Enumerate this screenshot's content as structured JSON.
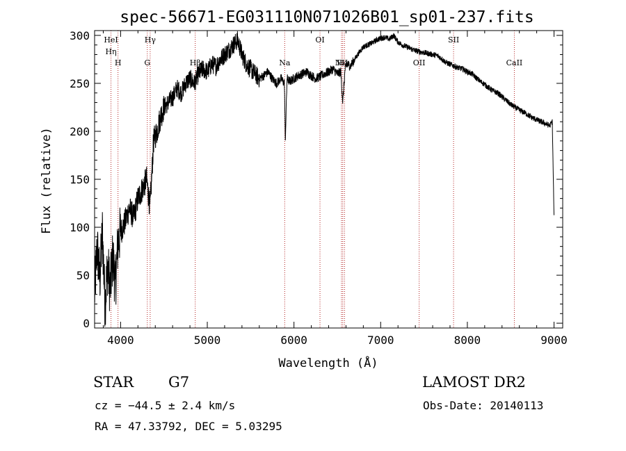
{
  "chart_data": {
    "type": "line",
    "title": "spec-56671-EG031110N071026B01_sp01-237.fits",
    "xlabel": "Wavelength (Å)",
    "ylabel": "Flux (relative)",
    "xlim": [
      3700,
      9100
    ],
    "ylim": [
      -5,
      305
    ],
    "xticks": [
      4000,
      5000,
      6000,
      7000,
      8000,
      9000
    ],
    "yticks": [
      0,
      50,
      100,
      150,
      200,
      250,
      300
    ],
    "grid": false,
    "series": [
      {
        "x": [
          3700,
          3730,
          3760,
          3790,
          3820,
          3850,
          3880,
          3910,
          3940,
          3970,
          4000,
          4050,
          4100,
          4150,
          4200,
          4250,
          4300,
          4340,
          4380,
          4420,
          4460,
          4500,
          4550,
          4600,
          4650,
          4700,
          4750,
          4800,
          4850,
          4900,
          4950,
          5000,
          5050,
          5100,
          5150,
          5200,
          5250,
          5300,
          5350,
          5400,
          5450,
          5500,
          5550,
          5600,
          5650,
          5700,
          5750,
          5800,
          5850,
          5890,
          5900,
          5920,
          5950,
          6000,
          6050,
          6100,
          6150,
          6200,
          6250,
          6300,
          6350,
          6400,
          6450,
          6500,
          6540,
          6563,
          6590,
          6620,
          6650,
          6700,
          6750,
          6800,
          6850,
          6900,
          6950,
          7000,
          7050,
          7100,
          7150,
          7200,
          7250,
          7300,
          7350,
          7400,
          7450,
          7500,
          7550,
          7600,
          7650,
          7700,
          7750,
          7800,
          7850,
          7900,
          7950,
          8000,
          8050,
          8100,
          8150,
          8200,
          8250,
          8300,
          8350,
          8400,
          8450,
          8500,
          8550,
          8600,
          8650,
          8700,
          8750,
          8800,
          8850,
          8900,
          8950,
          8980,
          9000
        ],
        "y": [
          30,
          80,
          45,
          95,
          20,
          60,
          35,
          70,
          40,
          85,
          95,
          105,
          120,
          110,
          130,
          140,
          150,
          120,
          190,
          200,
          215,
          225,
          230,
          235,
          245,
          240,
          250,
          255,
          250,
          260,
          265,
          262,
          270,
          268,
          275,
          280,
          285,
          290,
          295,
          280,
          270,
          265,
          260,
          255,
          258,
          262,
          255,
          250,
          255,
          250,
          190,
          255,
          252,
          255,
          258,
          260,
          262,
          258,
          255,
          257,
          260,
          262,
          265,
          260,
          262,
          230,
          265,
          270,
          268,
          275,
          282,
          288,
          290,
          292,
          295,
          297,
          298,
          296,
          300,
          293,
          290,
          288,
          286,
          284,
          283,
          282,
          281,
          280,
          279,
          276,
          272,
          270,
          268,
          266,
          265,
          262,
          260,
          256,
          252,
          249,
          245,
          242,
          240,
          236,
          232,
          228,
          225,
          222,
          220,
          217,
          214,
          212,
          210,
          208,
          206,
          210,
          110
        ]
      }
    ],
    "lines": [
      {
        "wl": 3889,
        "top": "HeI",
        "bottom": "Hη"
      },
      {
        "wl": 3970,
        "top": "",
        "bottom": "H"
      },
      {
        "wl": 4308,
        "top": "",
        "bottom": "G"
      },
      {
        "wl": 4341,
        "top": "Hγ",
        "bottom": ""
      },
      {
        "wl": 4861,
        "top": "",
        "bottom": "Hβ"
      },
      {
        "wl": 5893,
        "top": "",
        "bottom": "Na"
      },
      {
        "wl": 6300,
        "top": "OI",
        "bottom": ""
      },
      {
        "wl": 6548,
        "top": "",
        "bottom": "NII"
      },
      {
        "wl": 6563,
        "top": "",
        "bottom": "Hα"
      },
      {
        "wl": 6583,
        "top": "",
        "bottom": ""
      },
      {
        "wl": 7444,
        "top": "",
        "bottom": "OII"
      },
      {
        "wl": 7841,
        "top": "SII",
        "bottom": ""
      },
      {
        "wl": 8542,
        "top": "",
        "bottom": "CaII"
      }
    ]
  },
  "info": {
    "class_label": "STAR",
    "subclass": "G7",
    "survey": "LAMOST DR2",
    "redshift": "cz = −44.5 ± 2.4 km/s",
    "obs_date": "Obs-Date: 20140113",
    "coords": "RA =  47.33792, DEC =   5.03295"
  }
}
